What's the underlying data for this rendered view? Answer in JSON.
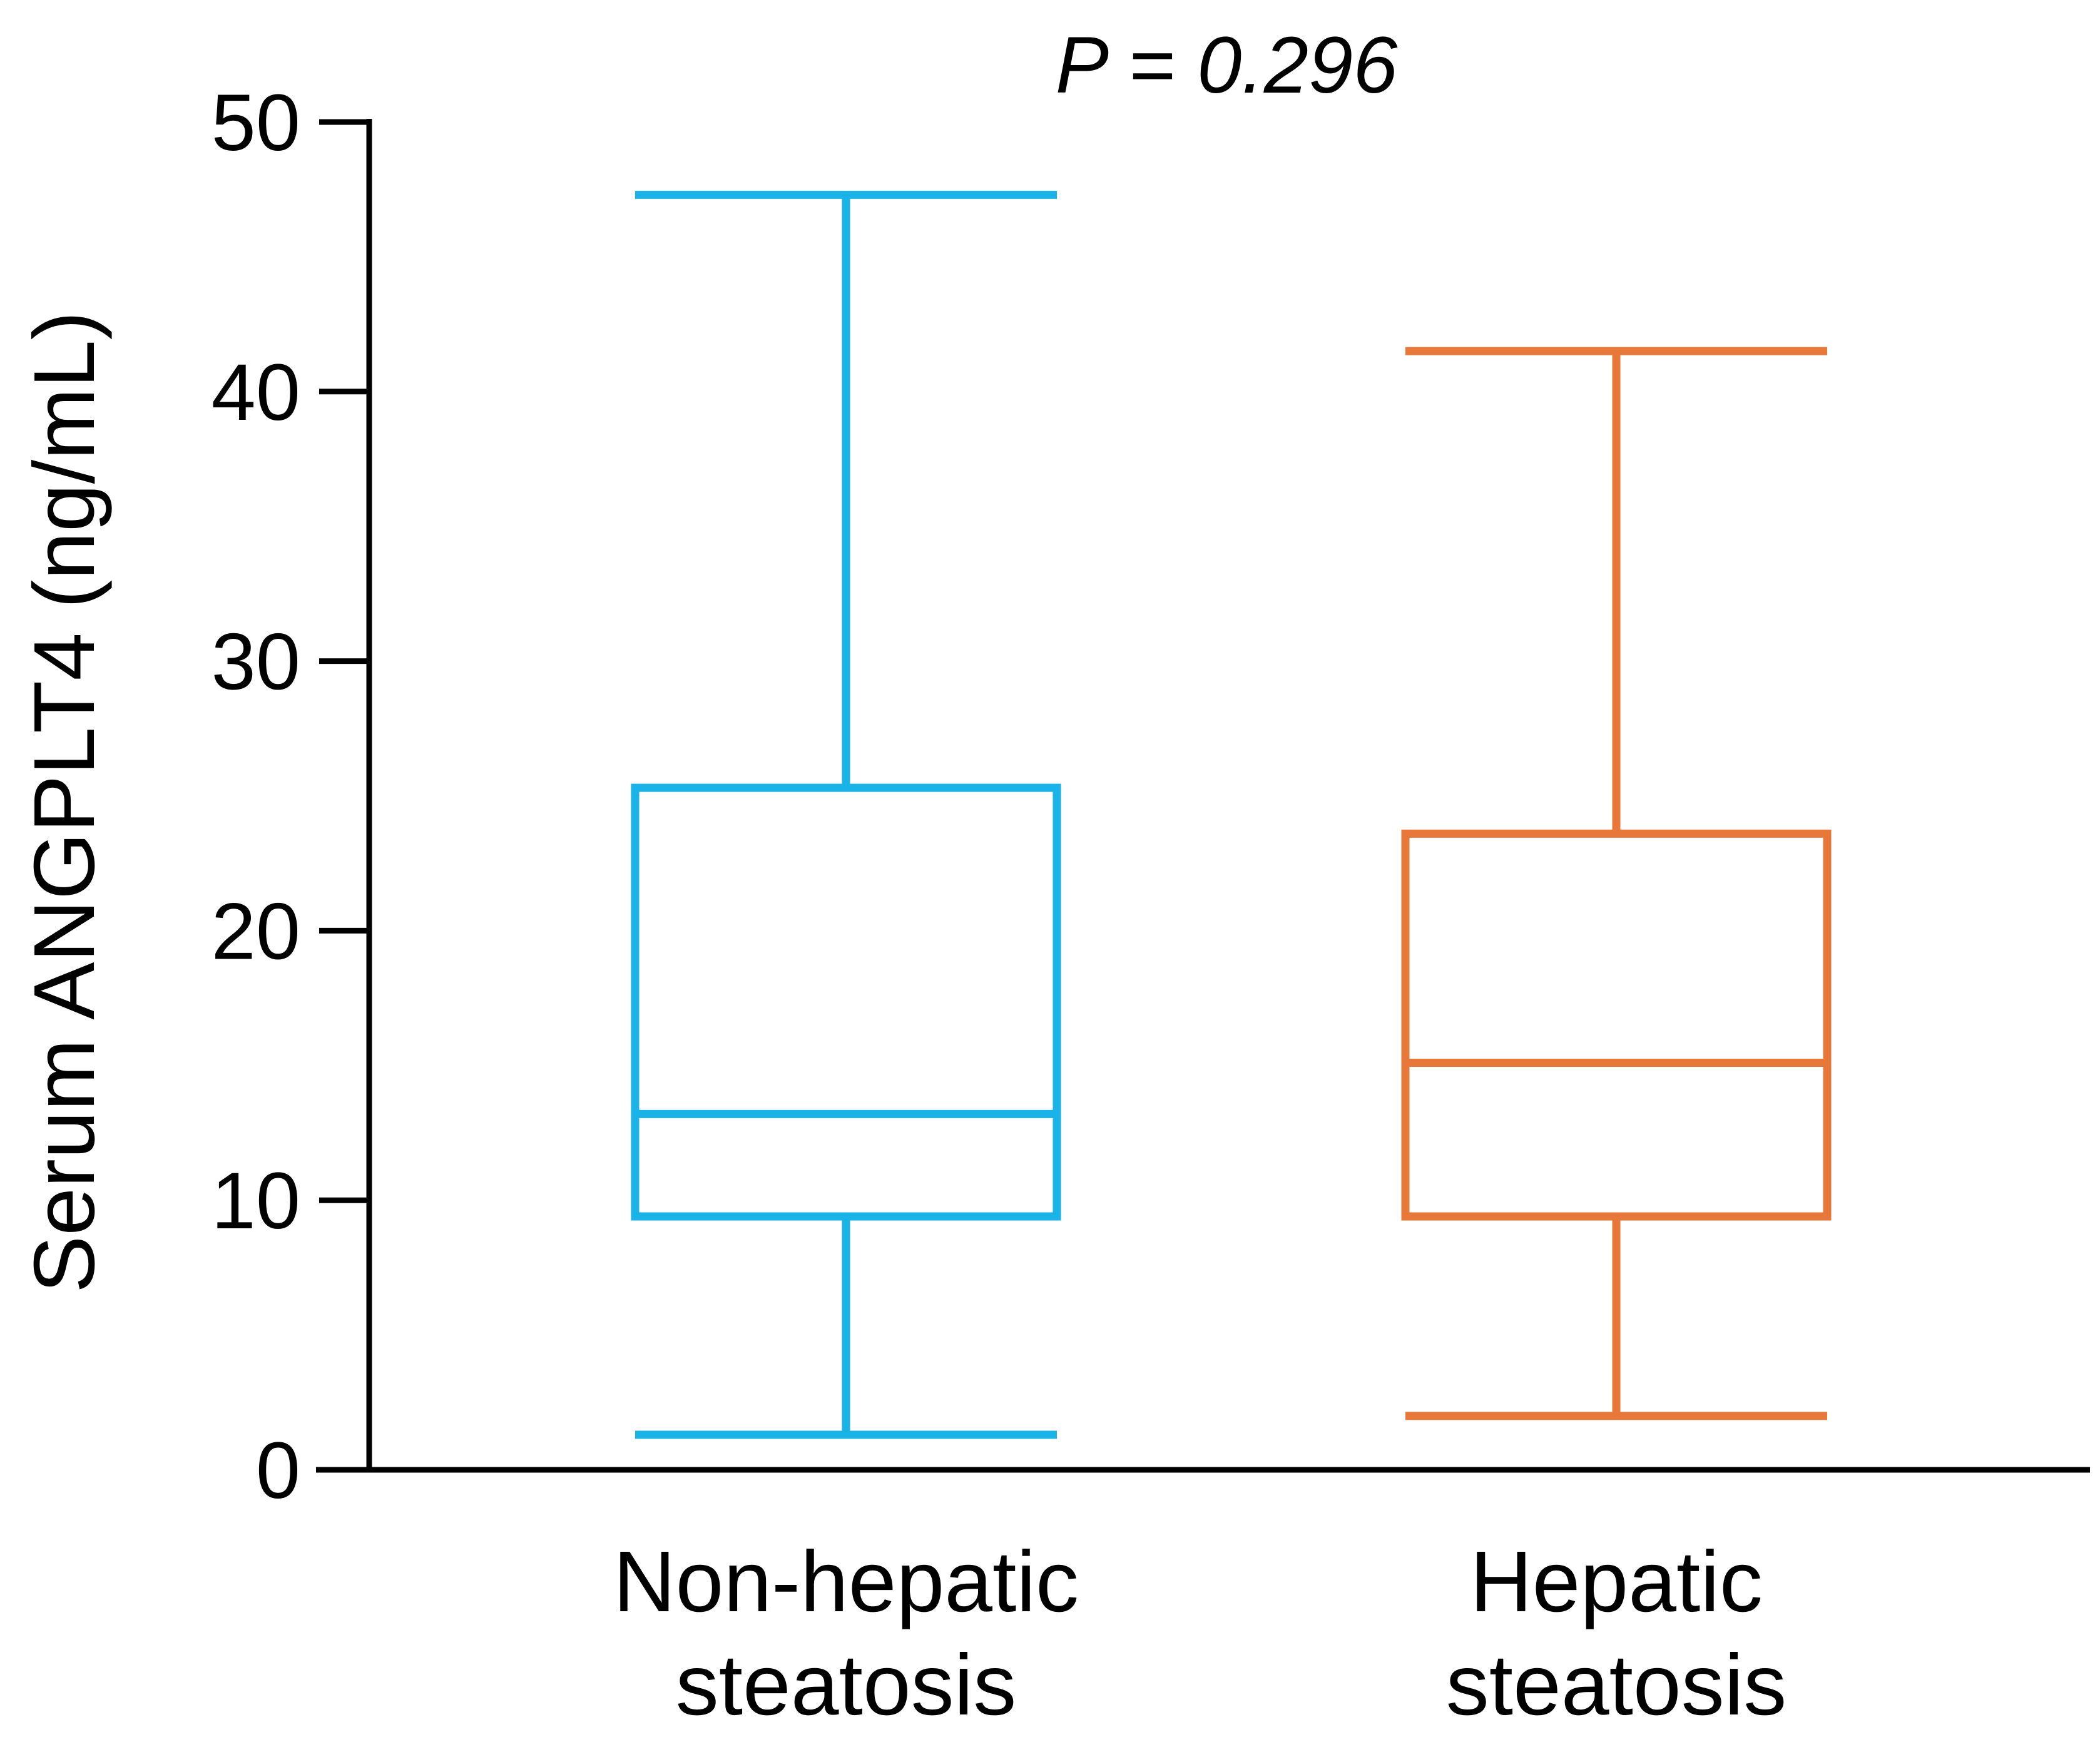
{
  "chart_data": {
    "type": "box",
    "title": "",
    "annotation": "P = 0.296",
    "ylabel": "Serum ANGPLT4 (ng/mL)",
    "xlabel": "",
    "ylim": [
      0,
      50
    ],
    "yticks": [
      0,
      10,
      20,
      30,
      40,
      50
    ],
    "grid": false,
    "series": [
      {
        "name": "Non-hepatic steatosis",
        "label_lines": [
          "Non-hepatic",
          "steatosis"
        ],
        "color": "#1AB3E8",
        "min": 1.3,
        "q1": 9.4,
        "median": 13.2,
        "q3": 25.3,
        "max": 47.3
      },
      {
        "name": "Hepatic steatosis",
        "label_lines": [
          "Hepatic",
          "steatosis"
        ],
        "color": "#E8783A",
        "min": 2.0,
        "q1": 9.4,
        "median": 15.1,
        "q3": 23.6,
        "max": 41.5
      }
    ]
  }
}
